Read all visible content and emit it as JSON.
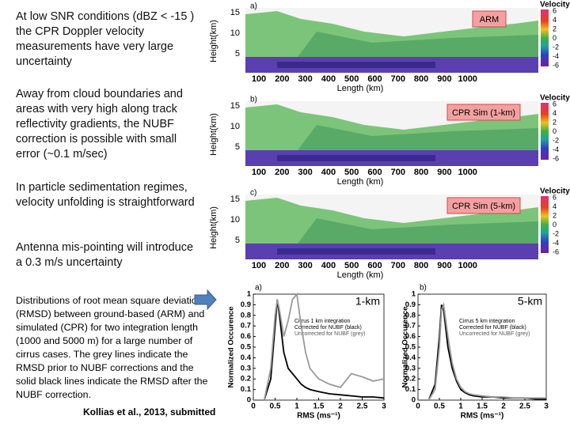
{
  "slide": {
    "paragraphs": [
      "At low SNR conditions (dBZ < -15 ) the CPR Doppler velocity measurements have very large uncertainty",
      "Away from cloud boundaries and areas with very high along track reflectivity gradients, the NUBF correction is possible with small error (~0.1 m/sec)",
      "In particle sedimentation regimes, velocity unfolding is straightforward",
      "Antenna mis-pointing will introduce a 0.3 m/s uncertainty"
    ],
    "caption": "Distributions of root mean square deviation (RMSD) between ground-based (ARM) and simulated (CPR) for two integration length (1000 and 5000 m) for a large number of cirrus cases. The grey lines indicate the RMSD prior to NUBF corrections and the solid black lines indicate the RMSD after the NUBF correction.",
    "citation": "Kollias et al., 2013, submitted"
  },
  "radar": {
    "y_label": "Height(km)",
    "x_label": "Length (km)",
    "colorbar_title": "Velocity",
    "xticks": [
      100,
      200,
      300,
      400,
      500,
      600,
      700,
      800,
      900,
      1000
    ],
    "yticks": [
      15,
      10,
      5
    ],
    "colorbar_ticks": [
      6,
      4,
      2,
      0,
      -2,
      -4,
      -6
    ],
    "panels": [
      {
        "label": "a)",
        "badge": "ARM"
      },
      {
        "label": "b)",
        "badge": "CPR Sim (1-km)"
      },
      {
        "label": "c)",
        "badge": "CPR Sim (5-km)"
      }
    ]
  },
  "chart_data": [
    {
      "type": "line",
      "panel_label": "a)",
      "tag": "1-km",
      "legend_title": "Cirrus 1 km integration",
      "x_label": "RMS (ms⁻¹)",
      "y_label": "Normalized Occurence",
      "x": [
        0,
        0.25,
        0.4,
        0.5,
        0.55,
        0.6,
        0.7,
        0.8,
        0.9,
        1.0,
        1.1,
        1.2,
        1.3,
        1.5,
        1.75,
        2.0,
        2.25,
        2.5,
        2.75,
        3.0
      ],
      "series": [
        {
          "name": "Corrected for NUBF (black)",
          "color": "#000000",
          "values": [
            0,
            0,
            0.2,
            0.7,
            0.95,
            0.8,
            0.45,
            0.3,
            0.25,
            0.2,
            0.15,
            0.12,
            0.1,
            0.08,
            0.06,
            0.05,
            0.04,
            0.03,
            0.03,
            0.02
          ]
        },
        {
          "name": "Uncorrected for NUBF (grey)",
          "color": "#9a9a9a",
          "values": [
            0,
            0,
            0.3,
            0.8,
            0.95,
            0.85,
            0.6,
            0.75,
            0.95,
            1.0,
            0.7,
            0.45,
            0.3,
            0.2,
            0.15,
            0.12,
            0.25,
            0.22,
            0.18,
            0.2
          ]
        }
      ],
      "xlim": [
        0,
        3
      ],
      "ylim": [
        0,
        1
      ],
      "xticks": [
        0,
        0.5,
        1,
        1.5,
        2,
        2.5,
        3
      ],
      "yticks": [
        0,
        0.1,
        0.2,
        0.3,
        0.4,
        0.5,
        0.6,
        0.7,
        0.8,
        0.9,
        1
      ]
    },
    {
      "type": "line",
      "panel_label": "b)",
      "tag": "5-km",
      "legend_title": "Cirrus 5 km integration",
      "x_label": "RMS (ms⁻¹)",
      "y_label": "Normalized Occurence",
      "x": [
        0,
        0.25,
        0.4,
        0.5,
        0.55,
        0.6,
        0.7,
        0.8,
        0.9,
        1.0,
        1.1,
        1.2,
        1.3,
        1.5,
        1.75,
        2.0,
        2.25,
        2.5,
        2.75,
        3.0
      ],
      "series": [
        {
          "name": "Corrected for NUBF (black)",
          "color": "#000000",
          "values": [
            0,
            0,
            0.15,
            0.6,
            0.9,
            0.85,
            0.5,
            0.3,
            0.18,
            0.1,
            0.07,
            0.05,
            0.04,
            0.03,
            0.03,
            0.02,
            0.02,
            0.02,
            0.01,
            0.01
          ]
        },
        {
          "name": "Uncorrected for NUBF (grey)",
          "color": "#9a9a9a",
          "values": [
            0,
            0,
            0.1,
            0.5,
            0.85,
            0.9,
            0.6,
            0.35,
            0.2,
            0.12,
            0.08,
            0.06,
            0.05,
            0.04,
            0.03,
            0.03,
            0.02,
            0.02,
            0.02,
            0.02
          ]
        }
      ],
      "xlim": [
        0,
        3
      ],
      "ylim": [
        0,
        1
      ],
      "xticks": [
        0,
        0.5,
        1,
        1.5,
        2,
        2.5,
        3
      ],
      "yticks": [
        0,
        0.1,
        0.2,
        0.3,
        0.4,
        0.5,
        0.6,
        0.7,
        0.8,
        0.9,
        1
      ]
    }
  ]
}
